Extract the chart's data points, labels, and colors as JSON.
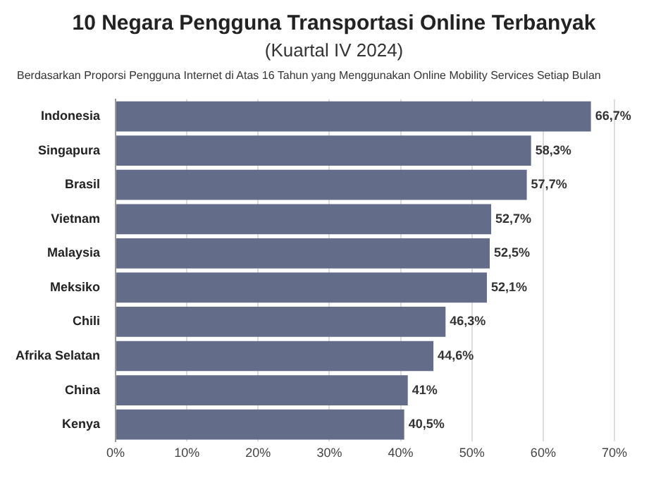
{
  "chart_data": {
    "type": "bar",
    "orientation": "horizontal",
    "title": "10 Negara Pengguna Transportasi Online Terbanyak",
    "subtitle": "(Kuartal IV 2024)",
    "annotations": [
      "Berdasarkan Proporsi Pengguna Internet di Atas 16 Tahun yang Menggunakan Online Mobility Services Setiap Bulan"
    ],
    "categories": [
      "Indonesia",
      "Singapura",
      "Brasil",
      "Vietnam",
      "Malaysia",
      "Meksiko",
      "Chili",
      "Afrika Selatan",
      "China",
      "Kenya"
    ],
    "values": [
      66.7,
      58.3,
      57.7,
      52.7,
      52.5,
      52.1,
      46.3,
      44.6,
      41,
      40.5
    ],
    "value_labels": [
      "66,7%",
      "58,3%",
      "57,7%",
      "52,7%",
      "52,5%",
      "52,1%",
      "46,3%",
      "44,6%",
      "41%",
      "40,5%"
    ],
    "color": "#636d89",
    "xlim": [
      0,
      70
    ],
    "xticks": [
      {
        "value": 0,
        "label": "0%"
      },
      {
        "value": 10,
        "label": "10%"
      },
      {
        "value": 20,
        "label": "20%"
      },
      {
        "value": 30,
        "label": "30%"
      },
      {
        "value": 40,
        "label": "40%"
      },
      {
        "value": 50,
        "label": "50%"
      },
      {
        "value": 60,
        "label": "60%"
      },
      {
        "value": 70,
        "label": "70%"
      }
    ],
    "grid": "x",
    "legend": false
  }
}
